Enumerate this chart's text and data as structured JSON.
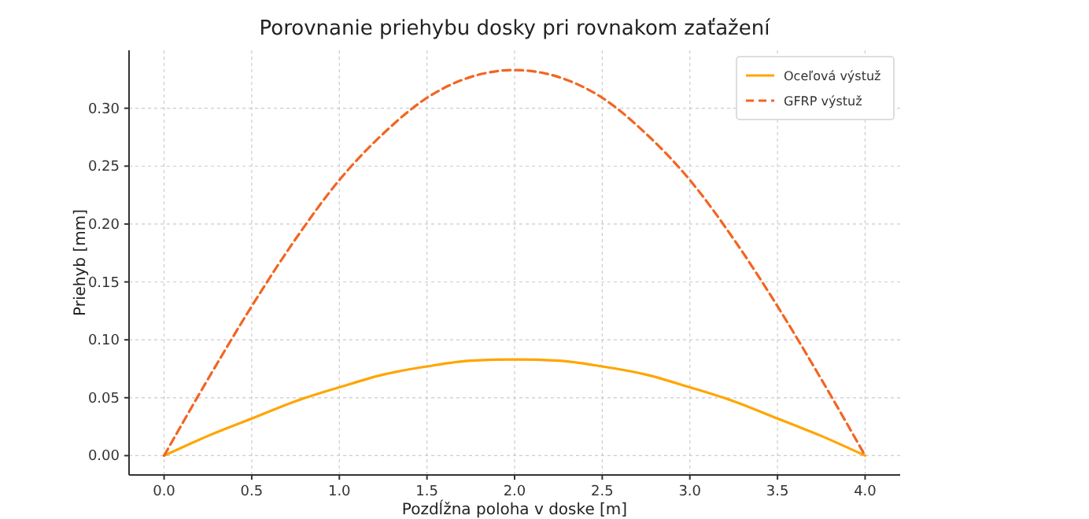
{
  "chart_data": {
    "type": "line",
    "title": "Porovnanie priehybu dosky pri rovnakom zaťažení",
    "xlabel": "Pozdĺžna poloha v doske [m]",
    "ylabel": "Priehyb [mm]",
    "x": [
      0,
      0.25,
      0.5,
      0.75,
      1,
      1.25,
      1.5,
      1.75,
      2,
      2.25,
      2.5,
      2.75,
      3,
      3.25,
      3.5,
      3.75,
      4
    ],
    "series": [
      {
        "name": "Oceľová výstuž",
        "color": "#ffa500",
        "line_style": "solid",
        "values": [
          0,
          0.017,
          0.032,
          0.047,
          0.059,
          0.07,
          0.077,
          0.082,
          0.083,
          0.082,
          0.077,
          0.07,
          0.059,
          0.047,
          0.032,
          0.017,
          0
        ]
      },
      {
        "name": "GFRP výstuž",
        "color": "#f26522",
        "line_style": "dashed",
        "values": [
          0,
          0.066,
          0.129,
          0.187,
          0.238,
          0.278,
          0.309,
          0.327,
          0.333,
          0.327,
          0.309,
          0.278,
          0.238,
          0.187,
          0.129,
          0.066,
          0
        ]
      }
    ],
    "xlim": [
      -0.2,
      4.2
    ],
    "ylim": [
      -0.0167,
      0.35
    ],
    "xticks": [
      {
        "value": 0,
        "label": "0.0"
      },
      {
        "value": 0.5,
        "label": "0.5"
      },
      {
        "value": 1,
        "label": "1.0"
      },
      {
        "value": 1.5,
        "label": "1.5"
      },
      {
        "value": 2,
        "label": "2.0"
      },
      {
        "value": 2.5,
        "label": "2.5"
      },
      {
        "value": 3,
        "label": "3.0"
      },
      {
        "value": 3.5,
        "label": "3.5"
      },
      {
        "value": 4,
        "label": "4.0"
      }
    ],
    "yticks": [
      {
        "value": 0,
        "label": "0.00"
      },
      {
        "value": 0.05,
        "label": "0.05"
      },
      {
        "value": 0.1,
        "label": "0.10"
      },
      {
        "value": 0.15,
        "label": "0.15"
      },
      {
        "value": 0.2,
        "label": "0.20"
      },
      {
        "value": 0.25,
        "label": "0.25"
      },
      {
        "value": 0.3,
        "label": "0.30"
      }
    ],
    "grid": true,
    "legend": "top right"
  }
}
